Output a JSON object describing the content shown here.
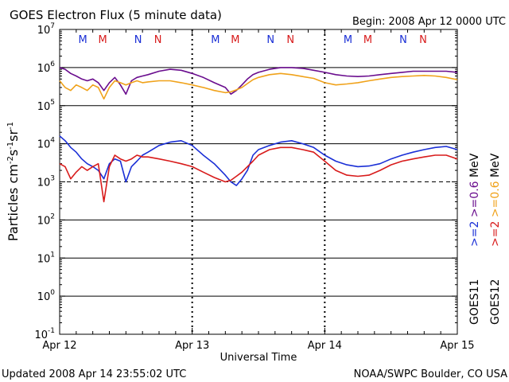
{
  "header": {
    "title": "GOES Electron Flux (5 minute data)",
    "begin": "Begin: 2008 Apr 12 0000 UTC"
  },
  "footer": {
    "updated": "Updated 2008 Apr 14 23:55:02 UTC",
    "credit": "NOAA/SWPC Boulder, CO USA"
  },
  "chart_data": {
    "type": "line",
    "title": "GOES Electron Flux (5 minute data)",
    "xlabel": "Universal Time",
    "ylabel": "Particles cm^-2 s^-1 sr^-1",
    "yscale": "log",
    "ylim": [
      0.1,
      10000000
    ],
    "y_tick_labels": [
      {
        "base": "10",
        "exp": "7"
      },
      {
        "base": "10",
        "exp": "6"
      },
      {
        "base": "10",
        "exp": "5"
      },
      {
        "base": "10",
        "exp": "4"
      },
      {
        "base": "10",
        "exp": "3"
      },
      {
        "base": "10",
        "exp": "2"
      },
      {
        "base": "10",
        "exp": "1"
      },
      {
        "base": "10",
        "exp": "0"
      },
      {
        "base": "10",
        "exp": "-1"
      }
    ],
    "x_tick_labels": [
      "Apr 12",
      "Apr 13",
      "Apr 14",
      "Apr 15"
    ],
    "xlim_hours": [
      0,
      72
    ],
    "marker_letters": [
      {
        "day": 0,
        "items": [
          {
            "letter": "M",
            "color": "#1a2fd6"
          },
          {
            "letter": "M",
            "color": "#d81b1b"
          },
          {
            "letter": "N",
            "color": "#1a2fd6"
          },
          {
            "letter": "N",
            "color": "#d81b1b"
          }
        ]
      },
      {
        "day": 1,
        "items": [
          {
            "letter": "M",
            "color": "#1a2fd6"
          },
          {
            "letter": "M",
            "color": "#d81b1b"
          },
          {
            "letter": "N",
            "color": "#1a2fd6"
          },
          {
            "letter": "N",
            "color": "#d81b1b"
          }
        ]
      },
      {
        "day": 2,
        "items": [
          {
            "letter": "M",
            "color": "#1a2fd6"
          },
          {
            "letter": "M",
            "color": "#d81b1b"
          },
          {
            "letter": "N",
            "color": "#1a2fd6"
          },
          {
            "letter": "N",
            "color": "#d81b1b"
          }
        ]
      }
    ],
    "right_labels": {
      "goes11": ">=2  >=0.6  MeV",
      "goes12": ">=2  >=0.6  MeV",
      "goes11_name": "GOES11",
      "goes12_name": "GOES12"
    },
    "series": [
      {
        "name": "GOES11 >=2 MeV",
        "color": "#1a2fd6",
        "x": [
          0,
          1,
          2,
          3,
          4,
          5,
          6,
          7,
          8,
          9,
          10,
          11,
          12,
          13,
          14,
          15,
          16,
          18,
          20,
          22,
          24,
          26,
          28,
          30,
          31,
          32,
          33,
          34,
          35,
          36,
          38,
          40,
          42,
          44,
          46,
          48,
          50,
          52,
          54,
          56,
          58,
          60,
          62,
          64,
          66,
          68,
          70,
          72
        ],
        "y": [
          16000,
          12000,
          8000,
          6000,
          4000,
          3000,
          2500,
          2000,
          1200,
          3000,
          4000,
          3500,
          1000,
          2500,
          3500,
          5000,
          6000,
          9000,
          11000,
          12000,
          9000,
          5000,
          3000,
          1500,
          1000,
          800,
          1200,
          2000,
          5000,
          7000,
          9000,
          11000,
          12000,
          10000,
          8000,
          5000,
          3500,
          2800,
          2500,
          2600,
          3000,
          4000,
          5000,
          6000,
          7000,
          8000,
          8500,
          7000
        ]
      },
      {
        "name": "GOES12 >=2 MeV",
        "color": "#d81b1b",
        "x": [
          0,
          1,
          2,
          3,
          4,
          5,
          6,
          7,
          8,
          9,
          10,
          11,
          12,
          13,
          14,
          15,
          16,
          18,
          20,
          22,
          24,
          26,
          28,
          30,
          31,
          32,
          33,
          34,
          35,
          36,
          38,
          40,
          42,
          44,
          46,
          48,
          50,
          52,
          54,
          56,
          58,
          60,
          62,
          64,
          66,
          68,
          70,
          72
        ],
        "y": [
          3000,
          2500,
          1200,
          1800,
          2500,
          2000,
          2500,
          3000,
          300,
          2500,
          5000,
          4000,
          3500,
          4000,
          5000,
          4500,
          4500,
          4000,
          3500,
          3000,
          2500,
          1800,
          1300,
          1000,
          1100,
          1400,
          1800,
          2500,
          3500,
          5000,
          7000,
          8000,
          8000,
          7000,
          6000,
          3500,
          2000,
          1500,
          1400,
          1500,
          2000,
          2800,
          3500,
          4000,
          4500,
          5000,
          5000,
          4000
        ]
      },
      {
        "name": "GOES11 >=0.6 MeV",
        "color": "#6a0d8e",
        "x": [
          0,
          1,
          2,
          3,
          4,
          5,
          6,
          7,
          8,
          9,
          10,
          11,
          12,
          13,
          14,
          15,
          16,
          18,
          20,
          22,
          24,
          26,
          28,
          30,
          31,
          32,
          33,
          34,
          35,
          36,
          38,
          40,
          42,
          44,
          46,
          48,
          50,
          52,
          54,
          56,
          58,
          60,
          62,
          64,
          66,
          68,
          70,
          72
        ],
        "y": [
          1000000,
          900000,
          700000,
          600000,
          500000,
          450000,
          500000,
          400000,
          250000,
          400000,
          550000,
          350000,
          200000,
          450000,
          550000,
          600000,
          650000,
          800000,
          900000,
          850000,
          700000,
          550000,
          400000,
          300000,
          200000,
          250000,
          350000,
          500000,
          650000,
          750000,
          900000,
          1000000,
          1000000,
          950000,
          850000,
          750000,
          650000,
          600000,
          580000,
          600000,
          650000,
          700000,
          750000,
          800000,
          800000,
          800000,
          800000,
          750000
        ]
      },
      {
        "name": "GOES12 >=0.6 MeV",
        "color": "#f0a21a",
        "x": [
          0,
          1,
          2,
          3,
          4,
          5,
          6,
          7,
          8,
          9,
          10,
          11,
          12,
          13,
          14,
          15,
          16,
          18,
          20,
          22,
          24,
          26,
          28,
          30,
          31,
          32,
          33,
          34,
          35,
          36,
          38,
          40,
          42,
          44,
          46,
          48,
          50,
          52,
          54,
          56,
          58,
          60,
          62,
          64,
          66,
          68,
          70,
          72
        ],
        "y": [
          450000,
          300000,
          250000,
          350000,
          300000,
          250000,
          350000,
          300000,
          150000,
          300000,
          450000,
          400000,
          350000,
          400000,
          450000,
          400000,
          420000,
          450000,
          450000,
          400000,
          350000,
          300000,
          250000,
          220000,
          230000,
          260000,
          300000,
          380000,
          480000,
          550000,
          650000,
          700000,
          650000,
          580000,
          520000,
          400000,
          350000,
          370000,
          400000,
          450000,
          500000,
          550000,
          580000,
          600000,
          620000,
          600000,
          550000,
          480000
        ]
      }
    ],
    "reference_lines": [
      {
        "y": 1000000,
        "style": "solid"
      },
      {
        "y": 100000,
        "style": "solid"
      },
      {
        "y": 10000,
        "style": "solid"
      },
      {
        "y": 1000,
        "style": "dashed"
      },
      {
        "y": 100,
        "style": "solid"
      },
      {
        "y": 10,
        "style": "solid"
      },
      {
        "y": 1,
        "style": "solid"
      }
    ]
  }
}
